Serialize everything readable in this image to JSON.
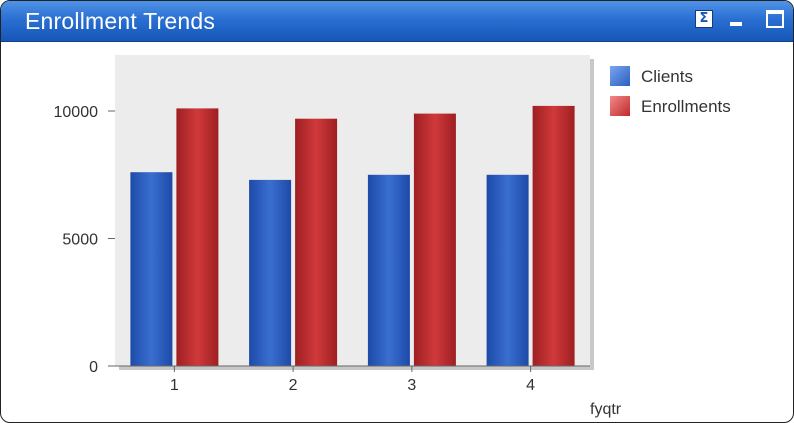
{
  "window": {
    "title": "Enrollment Trends",
    "sum_icon": "Σ"
  },
  "chart_data": {
    "type": "bar",
    "title": "Enrollment Trends",
    "xlabel": "fyqtr",
    "ylabel": "",
    "categories": [
      "1",
      "2",
      "3",
      "4"
    ],
    "ylim": [
      0,
      12000
    ],
    "yticks": [
      0,
      5000,
      10000
    ],
    "grid": false,
    "legend": "top-right",
    "series": [
      {
        "name": "Clients",
        "color": "#2b5fc0",
        "values": [
          7600,
          7300,
          7500,
          7500
        ]
      },
      {
        "name": "Enrollments",
        "color": "#c0292b",
        "values": [
          10100,
          9700,
          9900,
          10200
        ]
      }
    ]
  }
}
